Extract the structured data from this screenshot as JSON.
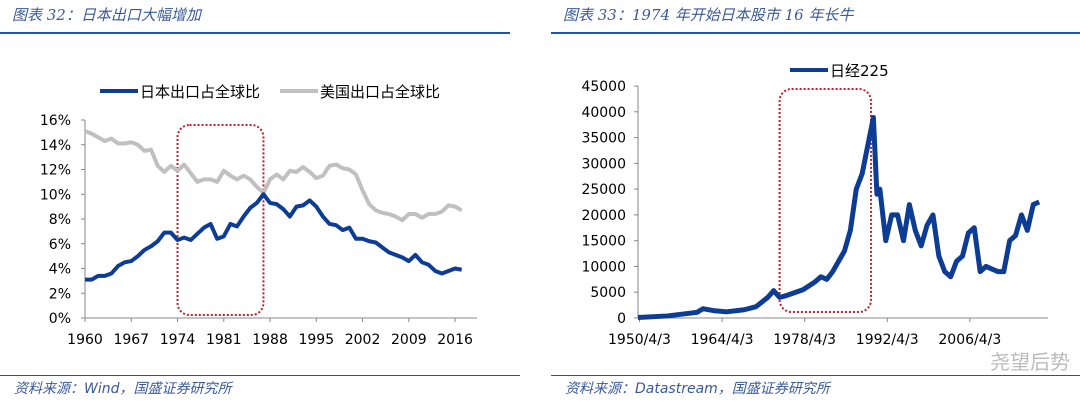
{
  "left_panel": {
    "title": "图表 32：日本出口大幅增加",
    "source": "资料来源：Wind，国盛证券研究所"
  },
  "right_panel": {
    "title": "图表 33：1974 年开始日本股市 16 年长牛",
    "source": "资料来源：Datastream，国盛证券研究所"
  },
  "watermark": "尧望后势",
  "colors": {
    "accent": "#1f57a5",
    "japan": "#0d3c94",
    "us": "#c0c0c0",
    "highlight_box": "#c0202a"
  },
  "chart_data": [
    {
      "type": "line",
      "title": "",
      "x": [
        1960,
        1961,
        1962,
        1963,
        1964,
        1965,
        1966,
        1967,
        1968,
        1969,
        1970,
        1971,
        1972,
        1973,
        1974,
        1975,
        1976,
        1977,
        1978,
        1979,
        1980,
        1981,
        1982,
        1983,
        1984,
        1985,
        1986,
        1987,
        1988,
        1989,
        1990,
        1991,
        1992,
        1993,
        1994,
        1995,
        1996,
        1997,
        1998,
        1999,
        2000,
        2001,
        2002,
        2003,
        2004,
        2005,
        2006,
        2007,
        2008,
        2009,
        2010,
        2011,
        2012,
        2013,
        2014,
        2015,
        2016,
        2017
      ],
      "xticks": [
        "1960",
        "1967",
        "1974",
        "1981",
        "1988",
        "1995",
        "2002",
        "2009",
        "2016"
      ],
      "yticks": [
        "0%",
        "2%",
        "4%",
        "6%",
        "8%",
        "10%",
        "12%",
        "14%",
        "16%"
      ],
      "ylim": [
        0,
        16
      ],
      "legend_position": "top",
      "highlight_range": [
        1974,
        1987
      ],
      "series": [
        {
          "name": "日本出口占全球比",
          "values": [
            3.1,
            3.1,
            3.4,
            3.4,
            3.6,
            4.2,
            4.5,
            4.6,
            5.0,
            5.5,
            5.8,
            6.2,
            6.9,
            6.9,
            6.3,
            6.5,
            6.3,
            6.8,
            7.3,
            7.6,
            6.4,
            6.6,
            7.6,
            7.4,
            8.2,
            8.9,
            9.3,
            10.0,
            9.3,
            9.2,
            8.8,
            8.2,
            9.0,
            9.1,
            9.5,
            9.0,
            8.2,
            7.6,
            7.5,
            7.1,
            7.3,
            6.4,
            6.4,
            6.2,
            6.1,
            5.7,
            5.3,
            5.1,
            4.9,
            4.6,
            5.1,
            4.5,
            4.3,
            3.8,
            3.6,
            3.8,
            4.0,
            3.9
          ]
        },
        {
          "name": "美国出口占全球比",
          "values": [
            15.1,
            14.9,
            14.6,
            14.3,
            14.5,
            14.1,
            14.1,
            14.2,
            14.0,
            13.5,
            13.6,
            12.3,
            11.8,
            12.3,
            11.9,
            12.4,
            11.7,
            11.0,
            11.2,
            11.2,
            11.0,
            11.9,
            11.5,
            11.2,
            11.5,
            11.2,
            10.6,
            10.1,
            11.2,
            11.6,
            11.2,
            11.9,
            11.8,
            12.2,
            11.8,
            11.3,
            11.5,
            12.3,
            12.4,
            12.1,
            12.0,
            11.6,
            10.3,
            9.2,
            8.7,
            8.5,
            8.4,
            8.2,
            7.9,
            8.4,
            8.4,
            8.1,
            8.4,
            8.4,
            8.6,
            9.1,
            9.0,
            8.7
          ]
        }
      ]
    },
    {
      "type": "line",
      "title": "",
      "x": [
        1950,
        1955,
        1960,
        1961,
        1963,
        1965,
        1968,
        1970,
        1972,
        1973,
        1974,
        1975,
        1978,
        1980,
        1981,
        1982,
        1983,
        1984,
        1985,
        1986,
        1987,
        1988,
        1989.9,
        1990.5,
        1991,
        1992,
        1993,
        1994,
        1995,
        1996,
        1997,
        1998,
        1999,
        2000,
        2001,
        2002,
        2003,
        2004,
        2005,
        2006,
        2007,
        2008,
        2009,
        2010,
        2011,
        2012,
        2013,
        2014,
        2015,
        2016,
        2017,
        2018
      ],
      "xticks": [
        "1950/4/3",
        "1964/4/3",
        "1978/4/3",
        "1992/4/3",
        "2006/4/3"
      ],
      "yticks": [
        "0",
        "5000",
        "10000",
        "15000",
        "20000",
        "25000",
        "30000",
        "35000",
        "40000",
        "45000"
      ],
      "ylim": [
        0,
        45000
      ],
      "legend_position": "top",
      "highlight_range": [
        1974,
        1989.5
      ],
      "series": [
        {
          "name": "日经225",
          "values": [
            100,
            400,
            1100,
            1800,
            1400,
            1200,
            1600,
            2200,
            4000,
            5300,
            4000,
            4300,
            5500,
            7000,
            8000,
            7500,
            9000,
            11000,
            13000,
            17000,
            25000,
            28000,
            38900,
            24000,
            25000,
            15000,
            20000,
            20000,
            15000,
            22000,
            17000,
            14000,
            18000,
            20000,
            12000,
            9000,
            8000,
            11000,
            12000,
            16500,
            17500,
            9000,
            10000,
            9500,
            9000,
            9000,
            15000,
            16000,
            20000,
            17000,
            22000,
            22500
          ]
        }
      ]
    }
  ]
}
